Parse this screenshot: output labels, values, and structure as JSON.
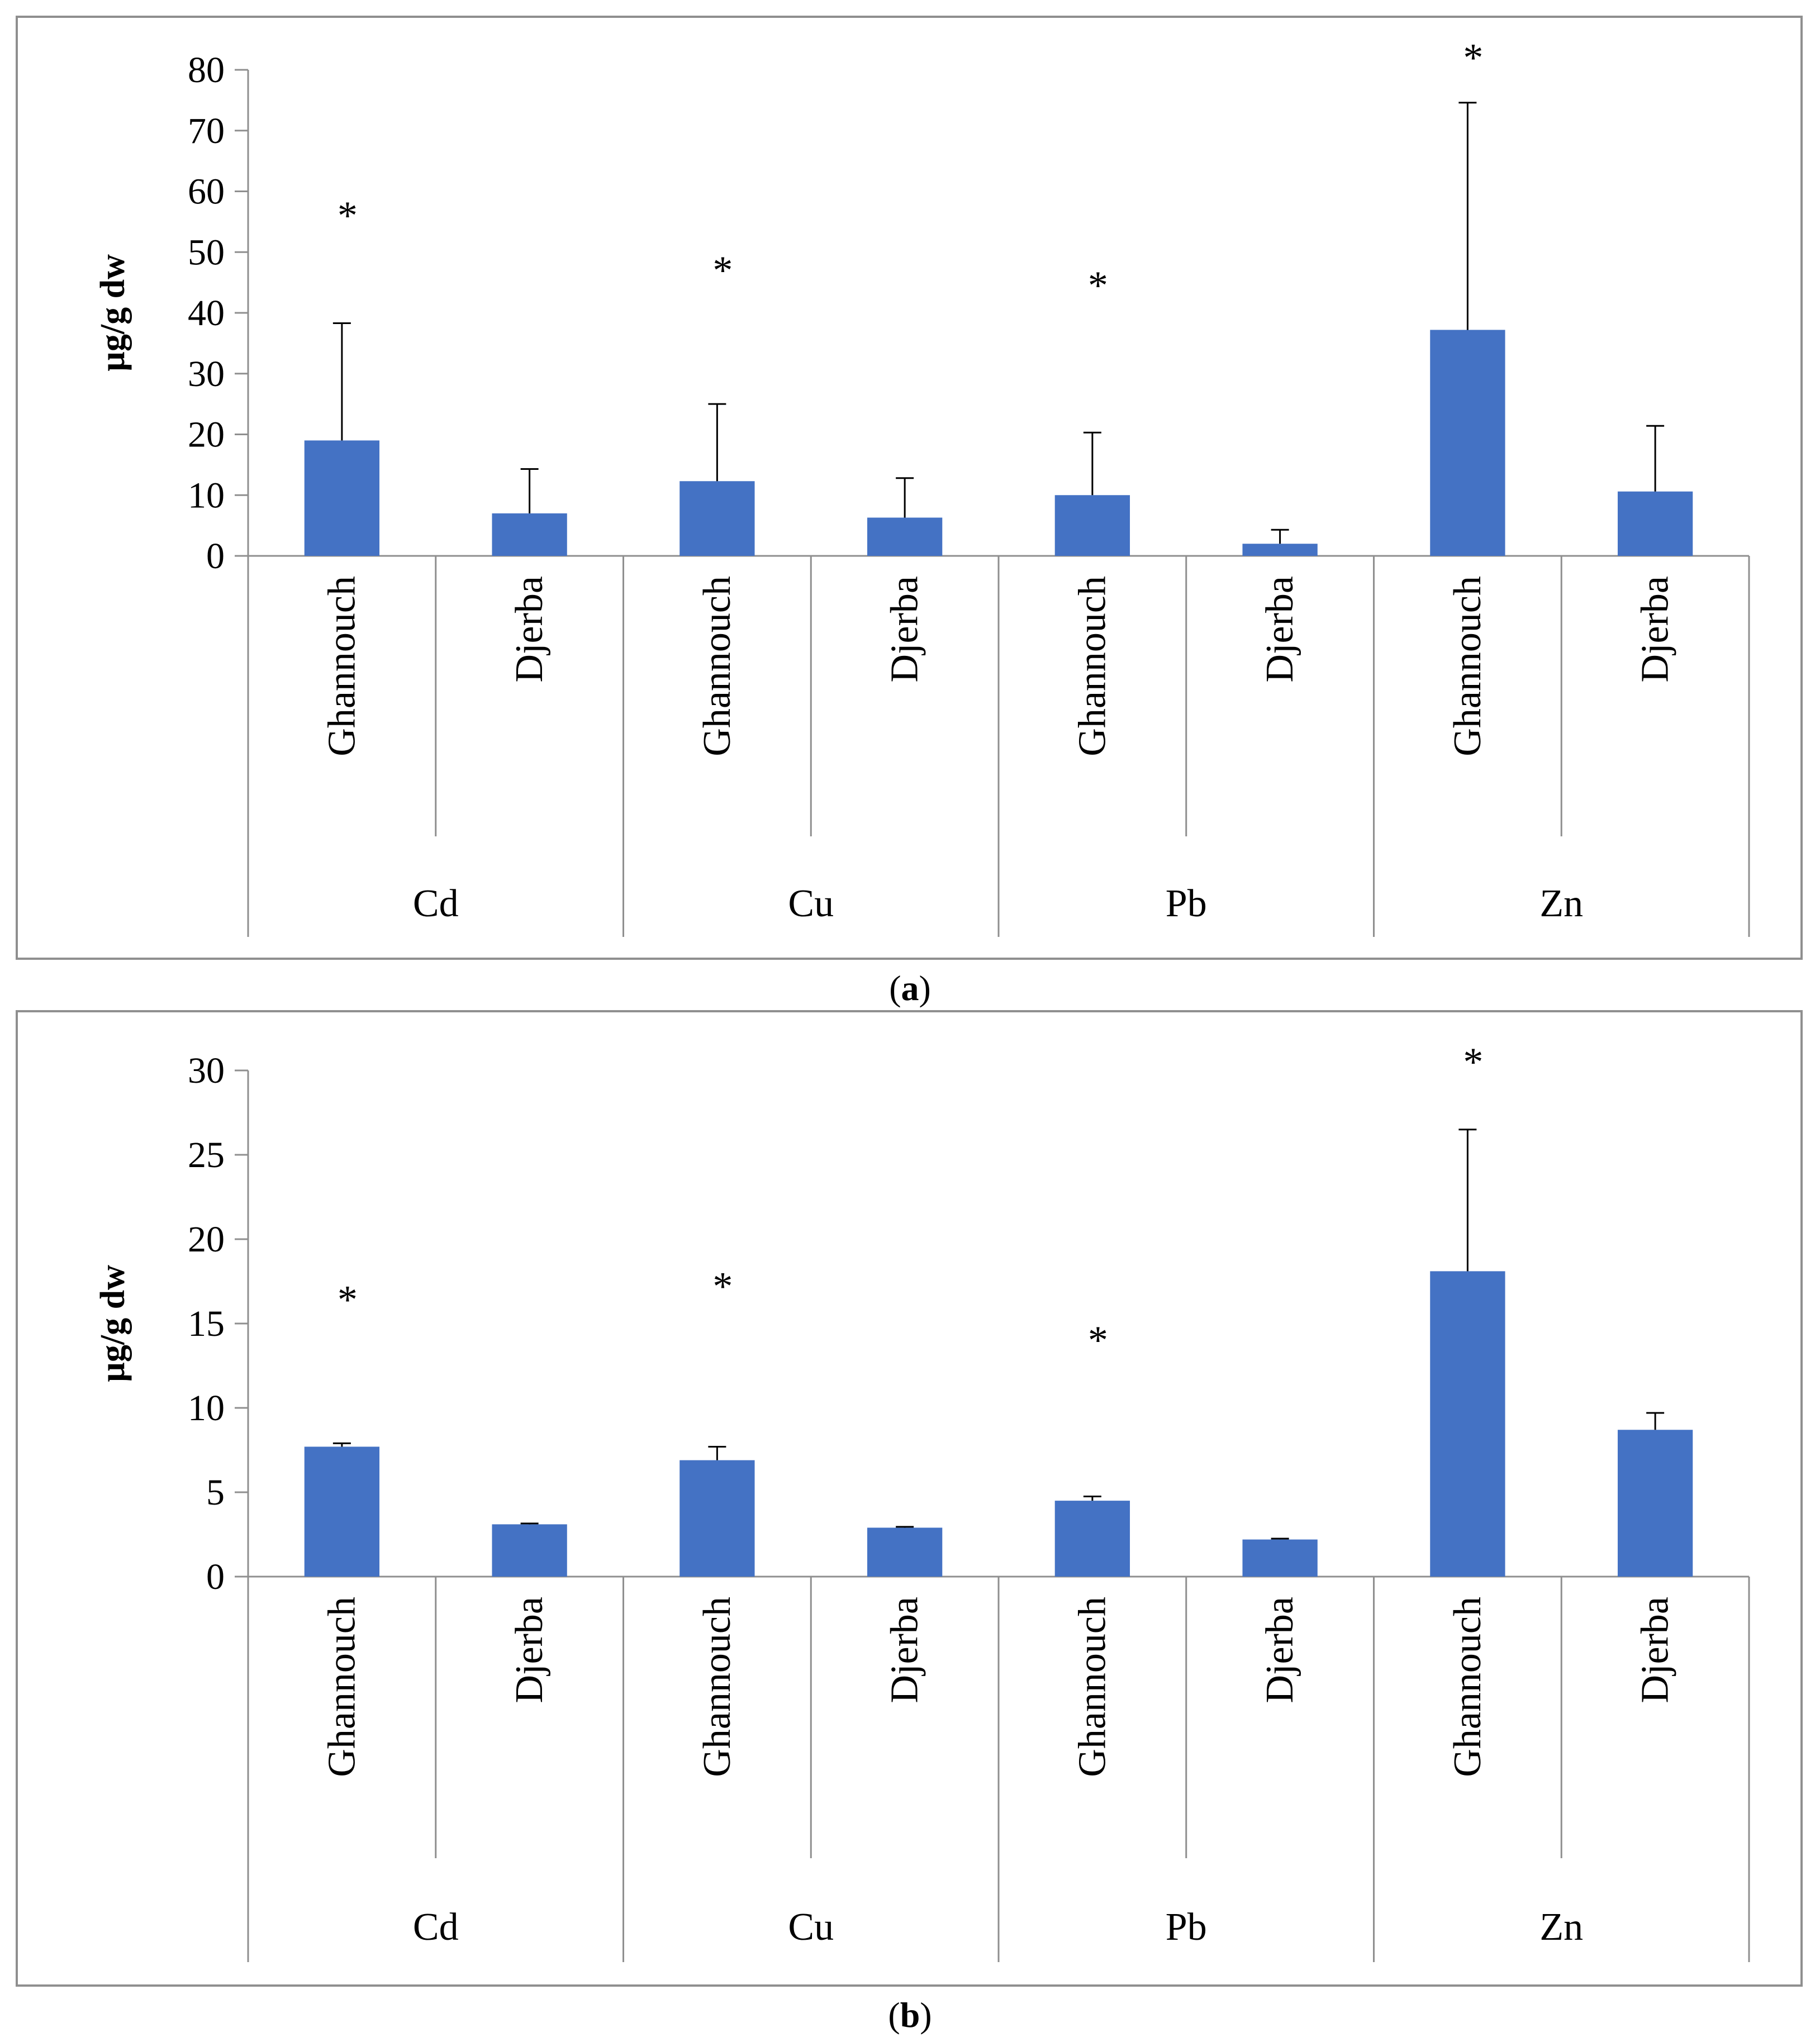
{
  "chart_data": [
    {
      "type": "bar",
      "panel": "a",
      "ylabel": "µg/g dw",
      "ylim": [
        0,
        80
      ],
      "yticks": [
        0,
        10,
        20,
        30,
        40,
        50,
        60,
        70,
        80
      ],
      "groups": [
        "Cd",
        "Cu",
        "Pb",
        "Zn"
      ],
      "sites": [
        "Ghannouch",
        "Djerba"
      ],
      "values": [
        19,
        7,
        12.3,
        6.3,
        10,
        2,
        37.2,
        10.6
      ],
      "errors": [
        19.3,
        7.3,
        12.7,
        6.5,
        10.3,
        2.3,
        37.4,
        10.8
      ],
      "significant": [
        true,
        false,
        true,
        false,
        true,
        false,
        true,
        false
      ],
      "star_positions": [
        56,
        null,
        47,
        null,
        44.5,
        null,
        82,
        null
      ],
      "bar_color": "#4472c4",
      "significance_marker": "*"
    },
    {
      "type": "bar",
      "panel": "b",
      "ylabel": "µg/g dw",
      "ylim": [
        0,
        30
      ],
      "yticks": [
        0,
        5,
        10,
        15,
        20,
        25,
        30
      ],
      "groups": [
        "Cd",
        "Cu",
        "Pb",
        "Zn"
      ],
      "sites": [
        "Ghannouch",
        "Djerba"
      ],
      "values": [
        7.7,
        3.1,
        6.9,
        2.9,
        4.5,
        2.2,
        18.1,
        8.7
      ],
      "errors": [
        0.2,
        0.05,
        0.8,
        0.05,
        0.25,
        0.05,
        8.4,
        1.0
      ],
      "significant": [
        true,
        false,
        true,
        false,
        true,
        false,
        true,
        false
      ],
      "star_positions": [
        16.4,
        null,
        17.2,
        null,
        14,
        null,
        30.5,
        null
      ],
      "bar_color": "#4472c4",
      "significance_marker": "*"
    }
  ],
  "captions": {
    "a_open": "(",
    "a_letter": "a",
    "a_close": ")",
    "b_open": "(",
    "b_letter": "b",
    "b_close": ")"
  }
}
